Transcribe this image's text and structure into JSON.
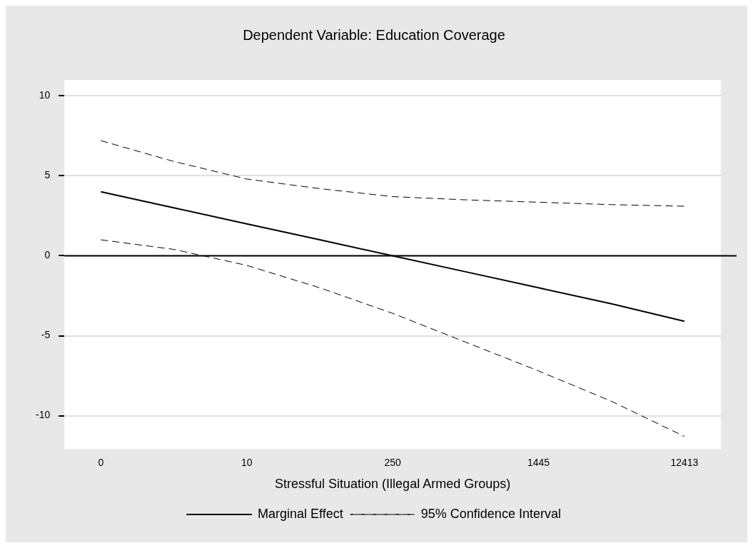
{
  "chart_data": {
    "type": "line",
    "title": "Dependent Variable: Education Coverage",
    "xlabel": "Stressful Situation (Illegal Armed Groups)",
    "categories": [
      "0",
      null,
      "10",
      null,
      "250",
      null,
      "1445",
      null,
      "12413"
    ],
    "ylim": [
      -12.1,
      11
    ],
    "yticks": [
      -10,
      -5,
      0,
      5,
      10
    ],
    "grid": "y",
    "legend": "bottom",
    "marker": "none",
    "series": [
      {
        "name": "Marginal Effect",
        "color": "#000000",
        "line_style": "solid",
        "values": [
          4,
          3,
          2,
          1,
          0,
          -1,
          -2,
          -3,
          -4.1
        ]
      },
      {
        "name": "95% Confidence Interval",
        "color": "#000000",
        "line_style": "dashed",
        "values": [
          7.2,
          5.9,
          4.8,
          4.2,
          3.7,
          3.5,
          3.35,
          3.2,
          3.1
        ]
      },
      {
        "color": "#000000",
        "line_style": "dashed",
        "values": [
          1,
          0.4,
          -0.6,
          -2,
          -3.6,
          -5.4,
          -7.2,
          -9.1,
          -11.3
        ]
      }
    ],
    "ref_lines": [
      {
        "axis": "y",
        "value": 0,
        "color": "#000000",
        "line_style": "solid"
      }
    ]
  }
}
